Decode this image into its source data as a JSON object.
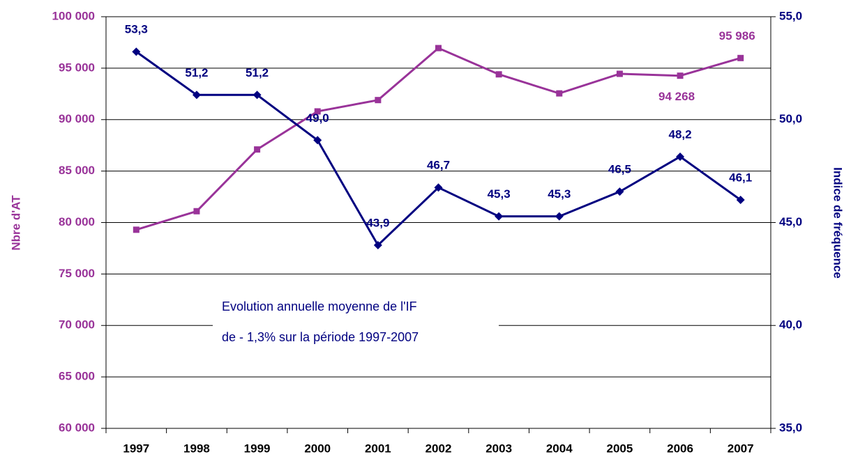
{
  "chart_data": {
    "type": "line",
    "categories": [
      "1997",
      "1998",
      "1999",
      "2000",
      "2001",
      "2002",
      "2003",
      "2004",
      "2005",
      "2006",
      "2007"
    ],
    "series": [
      {
        "name": "Nbre d'AT",
        "color": "#993399",
        "values": [
          79300,
          81100,
          87100,
          90800,
          91900,
          96950,
          94400,
          92550,
          94450,
          94268,
          95986
        ],
        "value_labels": [
          null,
          null,
          null,
          null,
          null,
          null,
          null,
          null,
          null,
          "94 268",
          "95 986"
        ]
      },
      {
        "name": "Indice de fréquence",
        "color": "#000080",
        "axis": "y2",
        "values": [
          53.3,
          51.2,
          51.2,
          49.0,
          43.9,
          46.7,
          45.3,
          45.3,
          46.5,
          48.2,
          46.1
        ],
        "value_labels": [
          "53,3",
          "51,2",
          "51,2",
          "49,0",
          "43,9",
          "46,7",
          "45,3",
          "45,3",
          "46,5",
          "48,2",
          "46,1"
        ]
      }
    ],
    "ylabel": "Nbre d'AT",
    "y2label": "Indice de fréquence",
    "ylim": [
      60000,
      100000
    ],
    "yticks": [
      {
        "value": 60000,
        "label": "60 000"
      },
      {
        "value": 65000,
        "label": "65 000"
      },
      {
        "value": 70000,
        "label": "70 000"
      },
      {
        "value": 75000,
        "label": "75 000"
      },
      {
        "value": 80000,
        "label": "80 000"
      },
      {
        "value": 85000,
        "label": "85 000"
      },
      {
        "value": 90000,
        "label": "90 000"
      },
      {
        "value": 95000,
        "label": "95 000"
      },
      {
        "value": 100000,
        "label": "100 000"
      }
    ],
    "y2lim": [
      35,
      55
    ],
    "y2ticks": [
      {
        "value": 35,
        "label": "35,0"
      },
      {
        "value": 40,
        "label": "40,0"
      },
      {
        "value": 45,
        "label": "45,0"
      },
      {
        "value": 50,
        "label": "50,0"
      },
      {
        "value": 55,
        "label": "55,0"
      }
    ],
    "annotation": [
      "Evolution annuelle moyenne de l'IF",
      "de - 1,3% sur la période 1997-2007"
    ],
    "grid": true
  }
}
